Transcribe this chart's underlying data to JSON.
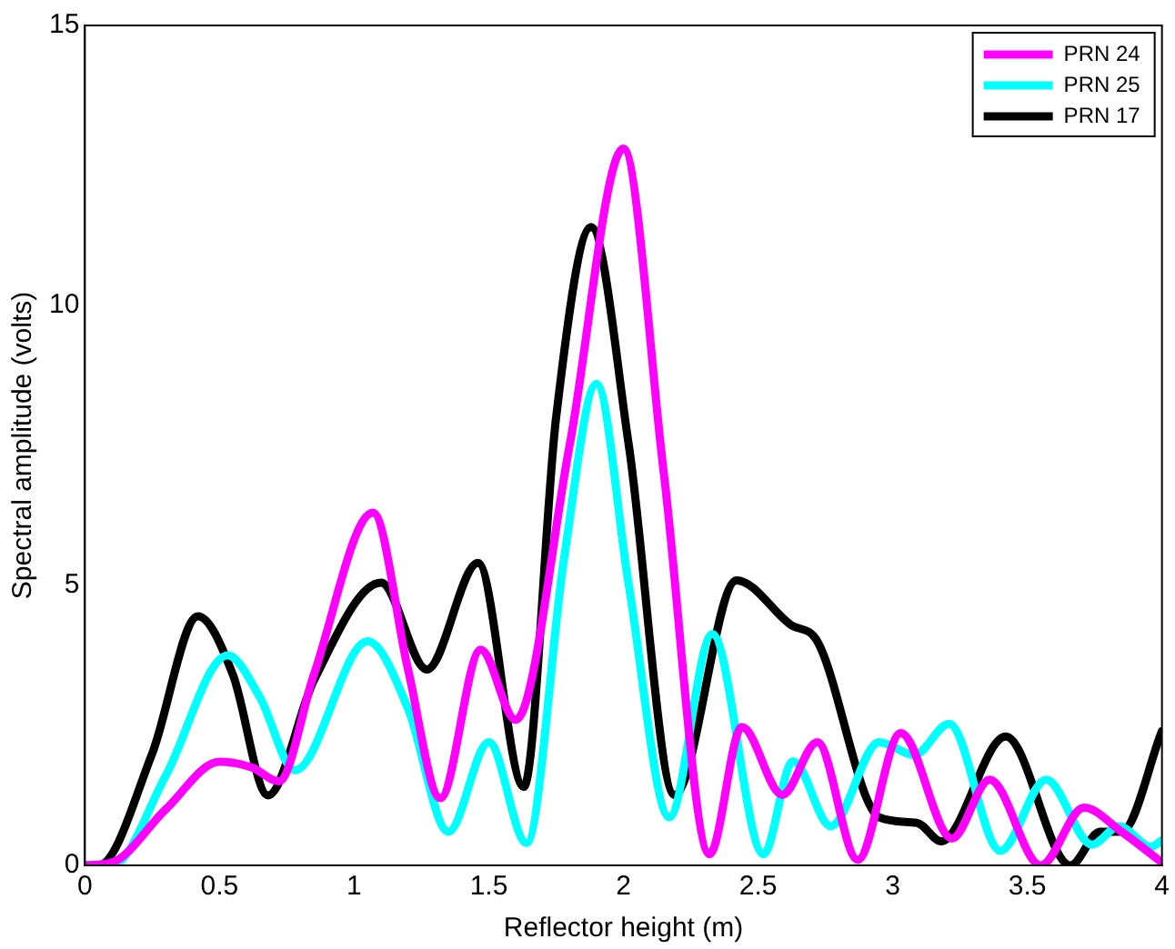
{
  "chart_data": {
    "type": "line",
    "xlabel": "Reflector height (m)",
    "ylabel": "Spectral amplitude (volts)",
    "xlim": [
      0,
      4
    ],
    "ylim": [
      0,
      15
    ],
    "xticks": [
      0,
      0.5,
      1,
      1.5,
      2,
      2.5,
      3,
      3.5,
      4
    ],
    "yticks": [
      0,
      5,
      10,
      15
    ],
    "grid": false,
    "legend": "top right",
    "marker": "none",
    "line_style": "solid",
    "series": [
      {
        "name": "PRN 24",
        "color": "#ff00ff",
        "x": [
          0,
          0.1,
          0.3,
          0.5,
          0.62,
          0.72,
          0.85,
          1.07,
          1.2,
          1.32,
          1.47,
          1.6,
          1.8,
          2.0,
          2.15,
          2.32,
          2.44,
          2.59,
          2.72,
          2.87,
          3.03,
          3.22,
          3.36,
          3.55,
          3.71,
          3.85,
          4.0
        ],
        "values": [
          0,
          0.05,
          1.0,
          1.85,
          1.75,
          1.5,
          3.4,
          6.3,
          3.5,
          1.2,
          3.85,
          2.6,
          7.5,
          12.8,
          7.0,
          0.2,
          2.47,
          1.26,
          2.2,
          0.1,
          2.36,
          0.48,
          1.53,
          0.0,
          1.03,
          0.6,
          0.05
        ]
      },
      {
        "name": "PRN 25",
        "color": "#00ffff",
        "x": [
          0,
          0.1,
          0.3,
          0.53,
          0.65,
          0.78,
          1.05,
          1.2,
          1.35,
          1.5,
          1.64,
          1.78,
          1.9,
          2.02,
          2.17,
          2.33,
          2.52,
          2.63,
          2.77,
          2.95,
          3.08,
          3.21,
          3.4,
          3.57,
          3.74,
          3.84,
          3.96,
          4.0
        ],
        "values": [
          0,
          0.0,
          1.6,
          3.75,
          3.0,
          1.7,
          4.0,
          2.8,
          0.6,
          2.2,
          0.4,
          5.5,
          8.6,
          5.0,
          0.86,
          4.13,
          0.2,
          1.86,
          0.7,
          2.2,
          1.97,
          2.53,
          0.26,
          1.53,
          0.37,
          0.7,
          0.33,
          0.45
        ]
      },
      {
        "name": "PRN 17",
        "color": "#000000",
        "x": [
          0,
          0.05,
          0.25,
          0.42,
          0.55,
          0.68,
          0.85,
          1.1,
          1.27,
          1.46,
          1.63,
          1.75,
          1.88,
          2.02,
          2.19,
          2.42,
          2.62,
          2.72,
          2.95,
          3.09,
          3.18,
          3.42,
          3.66,
          3.77,
          3.85,
          4.0
        ],
        "values": [
          0,
          0.0,
          2.0,
          4.45,
          3.4,
          1.25,
          3.3,
          5.05,
          3.5,
          5.4,
          1.4,
          8.0,
          11.4,
          7.5,
          1.26,
          5.09,
          4.3,
          4.0,
          0.86,
          0.76,
          0.43,
          2.3,
          0.0,
          0.6,
          0.6,
          2.4
        ]
      }
    ]
  }
}
